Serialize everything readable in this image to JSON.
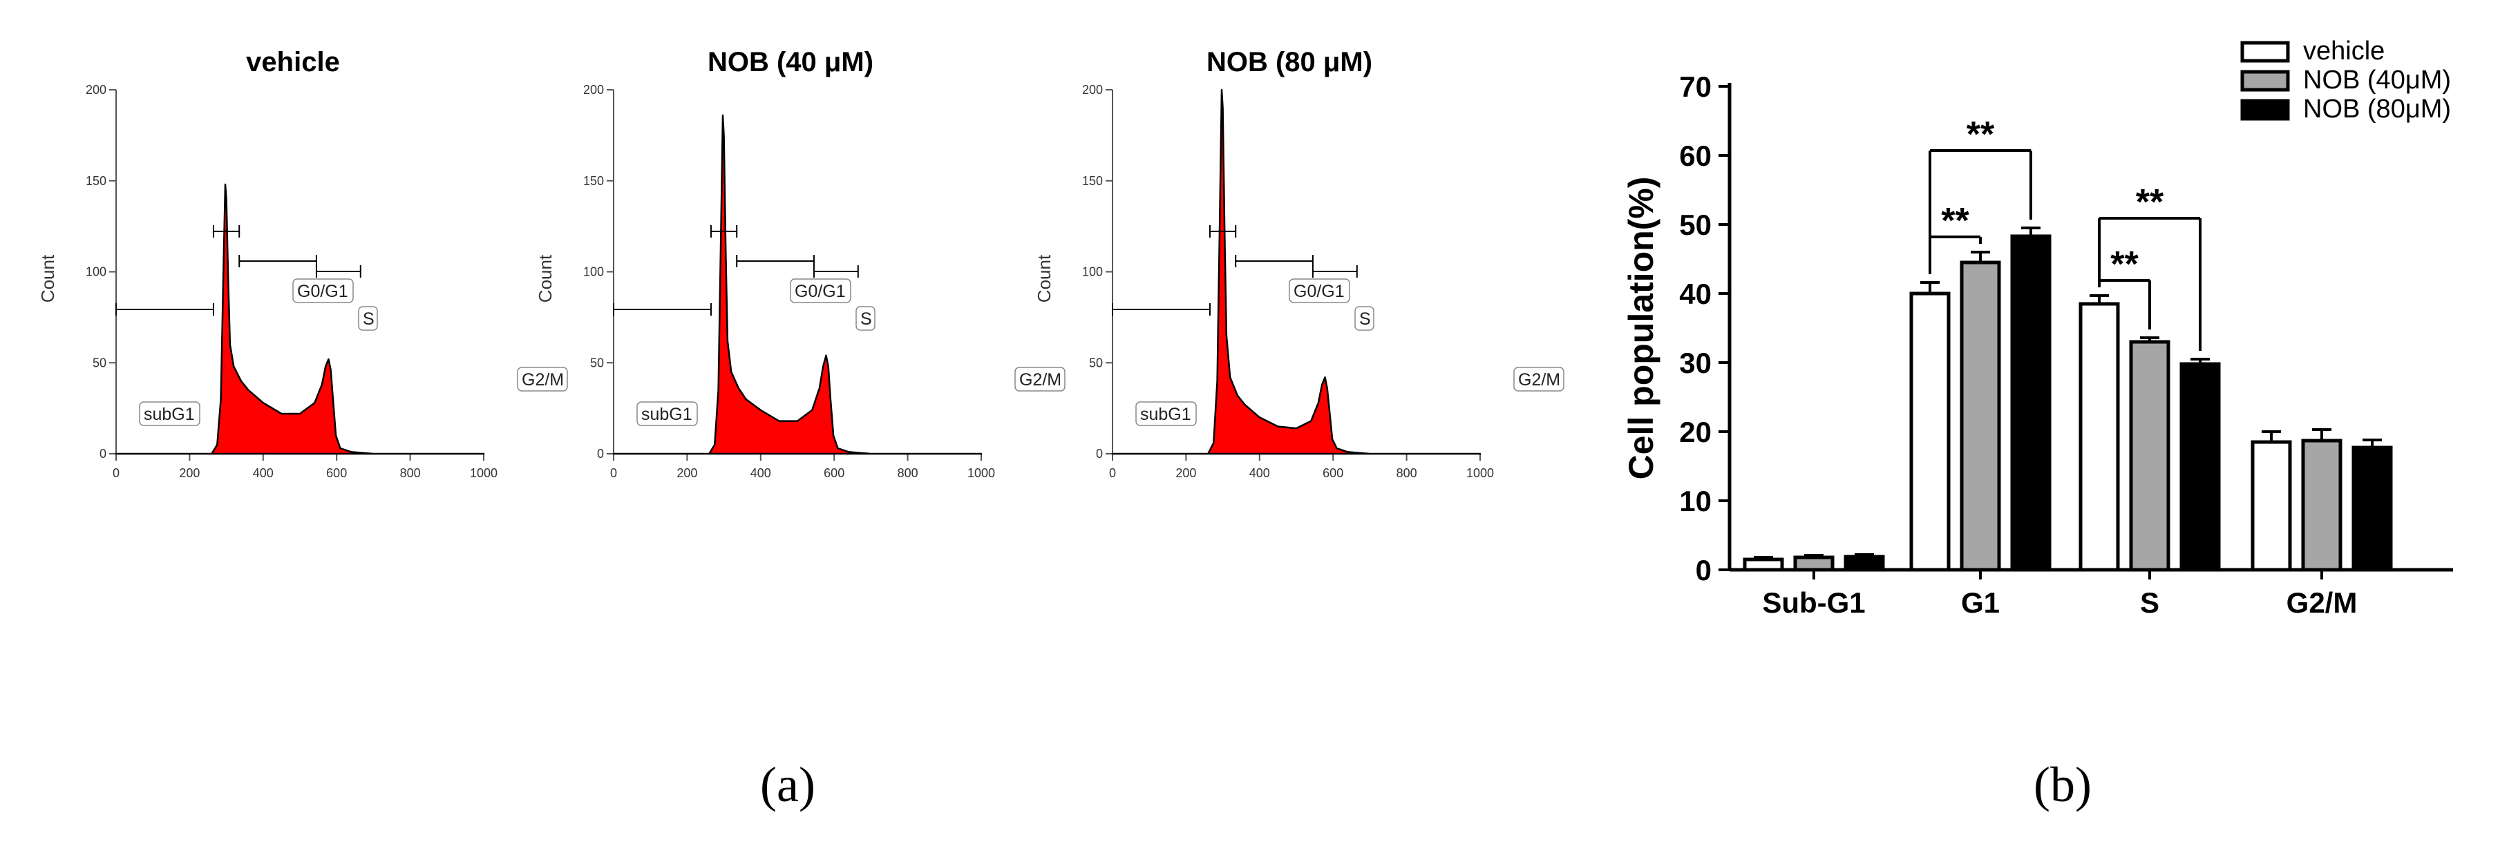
{
  "panel_labels": {
    "a": "(a)",
    "b": "(b)"
  },
  "histograms": {
    "ylabel": "Count",
    "gate_labels": {
      "g0g1": "G0/G1",
      "s": "S",
      "g2m": "G2/M",
      "subg1": "subG1"
    },
    "fill_color": "#ff0000",
    "plots": [
      {
        "title": "vehicle"
      },
      {
        "title": "NOB (40 μM)"
      },
      {
        "title": "NOB (80 μM)"
      }
    ]
  },
  "chart_data": [
    {
      "type": "area",
      "title": "vehicle",
      "ylabel": "Count",
      "xlim": [
        0,
        1000
      ],
      "ylim": [
        0,
        200
      ],
      "xticks": [
        0,
        200,
        400,
        600,
        800,
        1000
      ],
      "yticks": [
        0,
        50,
        100,
        150,
        200
      ],
      "x": [
        0,
        260,
        275,
        285,
        292,
        297,
        300,
        305,
        310,
        320,
        340,
        360,
        400,
        450,
        500,
        540,
        560,
        570,
        578,
        584,
        590,
        598,
        610,
        640,
        700,
        800,
        900,
        1000
      ],
      "y": [
        0,
        0,
        5,
        30,
        100,
        148,
        140,
        95,
        60,
        48,
        40,
        35,
        28,
        22,
        22,
        28,
        38,
        48,
        52,
        46,
        30,
        10,
        3,
        1,
        0,
        0,
        0,
        0
      ],
      "gates": [
        {
          "label": "subG1",
          "range": [
            0,
            265
          ]
        },
        {
          "label": "G0/G1",
          "range": [
            265,
            335
          ]
        },
        {
          "label": "S",
          "range": [
            335,
            545
          ]
        },
        {
          "label": "G2/M",
          "range": [
            545,
            665
          ]
        }
      ]
    },
    {
      "type": "area",
      "title": "NOB (40 μM)",
      "ylabel": "Count",
      "xlim": [
        0,
        1000
      ],
      "ylim": [
        0,
        200
      ],
      "xticks": [
        0,
        200,
        400,
        600,
        800,
        1000
      ],
      "yticks": [
        0,
        50,
        100,
        150,
        200
      ],
      "x": [
        0,
        260,
        275,
        285,
        292,
        297,
        300,
        305,
        310,
        320,
        340,
        360,
        400,
        450,
        500,
        540,
        560,
        570,
        578,
        584,
        590,
        598,
        610,
        640,
        700,
        800,
        900,
        1000
      ],
      "y": [
        0,
        0,
        5,
        35,
        120,
        186,
        175,
        110,
        62,
        45,
        36,
        30,
        24,
        18,
        18,
        24,
        36,
        48,
        54,
        48,
        30,
        10,
        3,
        1,
        0,
        0,
        0,
        0
      ],
      "gates": [
        {
          "label": "subG1",
          "range": [
            0,
            265
          ]
        },
        {
          "label": "G0/G1",
          "range": [
            265,
            335
          ]
        },
        {
          "label": "S",
          "range": [
            335,
            545
          ]
        },
        {
          "label": "G2/M",
          "range": [
            545,
            665
          ]
        }
      ]
    },
    {
      "type": "area",
      "title": "NOB (80 μM)",
      "ylabel": "Count",
      "xlim": [
        0,
        1000
      ],
      "ylim": [
        0,
        200
      ],
      "xticks": [
        0,
        200,
        400,
        600,
        800,
        1000
      ],
      "yticks": [
        0,
        50,
        100,
        150,
        200
      ],
      "x": [
        0,
        260,
        275,
        285,
        292,
        297,
        300,
        305,
        310,
        320,
        340,
        360,
        400,
        450,
        500,
        540,
        560,
        570,
        578,
        584,
        590,
        598,
        610,
        640,
        700,
        800,
        900,
        1000
      ],
      "y": [
        0,
        0,
        6,
        40,
        130,
        200,
        190,
        120,
        65,
        42,
        32,
        27,
        20,
        15,
        14,
        18,
        28,
        38,
        42,
        36,
        24,
        8,
        3,
        1,
        0,
        0,
        0,
        0
      ],
      "gates": [
        {
          "label": "subG1",
          "range": [
            0,
            265
          ]
        },
        {
          "label": "G0/G1",
          "range": [
            265,
            335
          ]
        },
        {
          "label": "S",
          "range": [
            335,
            545
          ]
        },
        {
          "label": "G2/M",
          "range": [
            545,
            665
          ]
        }
      ]
    },
    {
      "type": "bar",
      "title": "",
      "xlabel": "",
      "ylabel": "Cell population(%)",
      "ylim": [
        0,
        70
      ],
      "yticks": [
        0,
        10,
        20,
        30,
        40,
        50,
        60,
        70
      ],
      "categories": [
        "Sub-G1",
        "G1",
        "S",
        "G2/M"
      ],
      "series": [
        {
          "name": "vehicle",
          "color": "#ffffff",
          "values": [
            1.5,
            40,
            38.5,
            18.5
          ],
          "errors": [
            0.3,
            1.6,
            1.2,
            1.5
          ]
        },
        {
          "name": "NOB (40μM)",
          "color": "#a6a6a6",
          "values": [
            1.8,
            44.5,
            33,
            18.7
          ],
          "errors": [
            0.3,
            1.5,
            0.6,
            1.6
          ]
        },
        {
          "name": "NOB (80μM)",
          "color": "#000000",
          "values": [
            1.9,
            48.3,
            29.8,
            17.7
          ],
          "errors": [
            0.3,
            1.2,
            0.7,
            1.1
          ]
        }
      ],
      "significance": [
        {
          "category": "G1",
          "from": "vehicle",
          "to": "NOB (40μM)",
          "label": "**"
        },
        {
          "category": "G1",
          "from": "vehicle",
          "to": "NOB (80μM)",
          "label": "**"
        },
        {
          "category": "S",
          "from": "vehicle",
          "to": "NOB (40μM)",
          "label": "**"
        },
        {
          "category": "S",
          "from": "vehicle",
          "to": "NOB (80μM)",
          "label": "**"
        }
      ],
      "legend_position": "top-right"
    }
  ]
}
